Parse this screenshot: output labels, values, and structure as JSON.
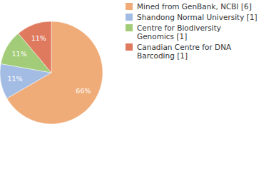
{
  "chart_data": {
    "type": "pie",
    "categories": [
      "Mined from GenBank, NCBI [6]",
      "Shandong Normal University [1]",
      "Centre for Biodiversity Genomics [1]",
      "Canadian Centre for DNA Barcoding [1]"
    ],
    "values": [
      66,
      11,
      11,
      11
    ],
    "value_labels": [
      "66%",
      "11%",
      "11%",
      "11%"
    ],
    "colors": [
      "#f0ac78",
      "#a3bce3",
      "#a3cc78",
      "#e07a5f"
    ],
    "data_labels": true,
    "legend": "right"
  }
}
